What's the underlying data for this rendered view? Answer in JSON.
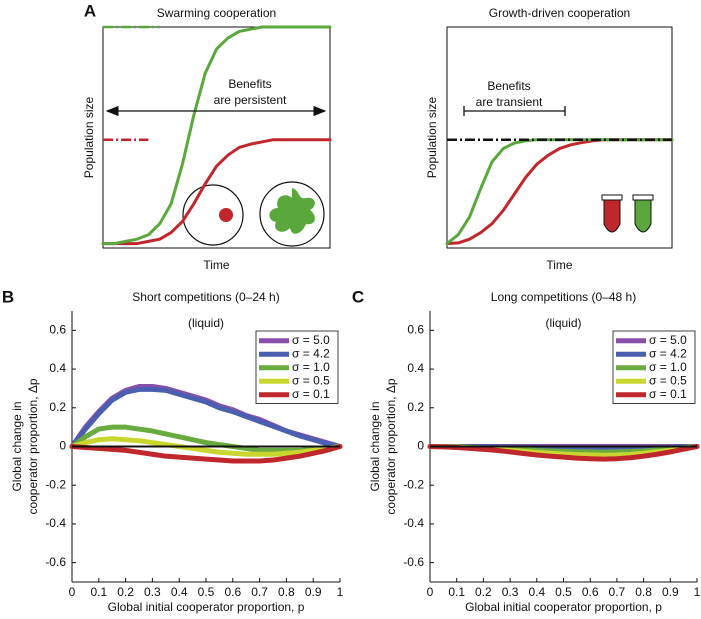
{
  "chart_data": [
    {
      "type": "line",
      "panel_label": "A",
      "title": "Swarming cooperation",
      "xlabel": "Time",
      "ylabel": "Population size",
      "annotations": [
        "Benefits",
        "are persistent"
      ],
      "xlim": [
        0,
        1
      ],
      "ylim": [
        0,
        1
      ],
      "x": [
        0,
        0.05,
        0.1,
        0.15,
        0.2,
        0.25,
        0.3,
        0.35,
        0.4,
        0.45,
        0.5,
        0.55,
        0.6,
        0.65,
        0.7,
        0.75,
        0.8,
        0.85,
        0.9,
        0.95,
        1
      ],
      "series": [
        {
          "color": "#5aa83c",
          "dash": true,
          "values": [
            1,
            1,
            1,
            1,
            1,
            1,
            null,
            null,
            null,
            null,
            null,
            null,
            null,
            null,
            null,
            null,
            null,
            null,
            null,
            null,
            null
          ]
        },
        {
          "color": "#c0272d",
          "dash": true,
          "values": [
            0.49,
            0.49,
            0.49,
            0.49,
            0.49,
            null,
            null,
            null,
            null,
            null,
            null,
            null,
            null,
            null,
            null,
            null,
            null,
            null,
            null,
            null,
            null
          ]
        },
        {
          "color": "#c0272d",
          "values": [
            0.02,
            0.02,
            0.02,
            0.02,
            0.03,
            0.04,
            0.07,
            0.12,
            0.2,
            0.29,
            0.37,
            0.42,
            0.455,
            0.47,
            0.48,
            0.49,
            0.49,
            0.49,
            0.49,
            0.49,
            0.49
          ]
        },
        {
          "color": "#5aa83c",
          "values": [
            0.02,
            0.02,
            0.03,
            0.04,
            0.06,
            0.11,
            0.2,
            0.38,
            0.6,
            0.79,
            0.9,
            0.95,
            0.98,
            0.99,
            1,
            1,
            1,
            1,
            1,
            1,
            1
          ]
        }
      ]
    },
    {
      "type": "line",
      "title": "Growth-driven cooperation",
      "xlabel": "Time",
      "ylabel": "Population size",
      "annotations": [
        "Benefits",
        "are transient"
      ],
      "xlim": [
        0,
        1
      ],
      "ylim": [
        0,
        1
      ],
      "x": [
        0,
        0.05,
        0.1,
        0.15,
        0.2,
        0.25,
        0.3,
        0.35,
        0.4,
        0.45,
        0.5,
        0.55,
        0.6,
        0.65,
        0.7,
        0.75,
        0.8,
        0.85,
        0.9,
        0.95,
        1
      ],
      "series": [
        {
          "color": "#c0272d",
          "values": [
            0.02,
            0.023,
            0.04,
            0.07,
            0.11,
            0.17,
            0.245,
            0.32,
            0.38,
            0.42,
            0.45,
            0.467,
            0.477,
            0.485,
            0.49,
            0.49,
            0.49,
            0.49,
            0.49,
            0.49,
            0.49
          ]
        },
        {
          "color": "#5aa83c",
          "values": [
            0.02,
            0.06,
            0.14,
            0.27,
            0.39,
            0.45,
            0.475,
            0.485,
            0.49,
            0.49,
            0.49,
            0.49,
            0.49,
            0.49,
            0.49,
            0.49,
            0.49,
            0.49,
            0.49,
            0.49,
            0.49
          ]
        },
        {
          "color": "#111111",
          "dash": true,
          "values": [
            0.49,
            0.49,
            0.49,
            0.49,
            0.49,
            0.49,
            0.49,
            0.49,
            0.49,
            0.49,
            0.49,
            0.49,
            0.49,
            0.49,
            0.49,
            0.49,
            0.49,
            0.49,
            0.49,
            0.49,
            0.49
          ]
        }
      ]
    },
    {
      "type": "line",
      "panel_label": "B",
      "title": "Short competitions (0–24 h)",
      "subtitle": "(liquid)",
      "xlabel": "Global initial cooperator proportion, p",
      "ylabel": [
        "Global change in",
        "cooperator proportion, Δp"
      ],
      "xlim": [
        0,
        1
      ],
      "ylim": [
        -0.7,
        0.7
      ],
      "xticks": [
        0,
        0.1,
        0.2,
        0.3,
        0.4,
        0.5,
        0.6,
        0.7,
        0.8,
        0.9,
        1
      ],
      "yticks": [
        -0.6,
        -0.4,
        -0.2,
        0,
        0.2,
        0.4,
        0.6
      ],
      "legend": "upper right",
      "x": [
        0,
        0.05,
        0.1,
        0.15,
        0.2,
        0.25,
        0.3,
        0.35,
        0.4,
        0.45,
        0.5,
        0.55,
        0.6,
        0.65,
        0.7,
        0.75,
        0.8,
        0.85,
        0.9,
        0.95,
        1
      ],
      "series": [
        {
          "name": "σ = 5.0",
          "color": "#8a4fa8",
          "values": [
            0,
            0.1,
            0.18,
            0.25,
            0.29,
            0.31,
            0.31,
            0.3,
            0.28,
            0.26,
            0.24,
            0.21,
            0.19,
            0.16,
            0.14,
            0.11,
            0.08,
            0.06,
            0.04,
            0.02,
            0
          ]
        },
        {
          "name": "σ = 4.2",
          "color": "#4a5fb0",
          "values": [
            0,
            0.09,
            0.17,
            0.24,
            0.28,
            0.295,
            0.295,
            0.29,
            0.27,
            0.25,
            0.23,
            0.2,
            0.18,
            0.155,
            0.13,
            0.105,
            0.08,
            0.055,
            0.035,
            0.015,
            0
          ]
        },
        {
          "name": "σ = 1.0",
          "color": "#6aab3f",
          "values": [
            0,
            0.05,
            0.09,
            0.1,
            0.1,
            0.09,
            0.08,
            0.065,
            0.05,
            0.035,
            0.02,
            0.01,
            0,
            -0.01,
            -0.02,
            -0.02,
            -0.02,
            -0.02,
            -0.015,
            -0.01,
            0
          ]
        },
        {
          "name": "σ = 0.5",
          "color": "#c8d62e",
          "values": [
            0,
            0.02,
            0.035,
            0.04,
            0.035,
            0.03,
            0.02,
            0.01,
            0,
            -0.01,
            -0.02,
            -0.03,
            -0.035,
            -0.04,
            -0.04,
            -0.04,
            -0.035,
            -0.03,
            -0.02,
            -0.01,
            0
          ]
        },
        {
          "name": "σ = 0.1",
          "color": "#c0272d",
          "values": [
            0,
            -0.005,
            -0.01,
            -0.015,
            -0.02,
            -0.03,
            -0.04,
            -0.05,
            -0.055,
            -0.06,
            -0.065,
            -0.07,
            -0.075,
            -0.075,
            -0.075,
            -0.07,
            -0.06,
            -0.05,
            -0.035,
            -0.02,
            0
          ]
        }
      ]
    },
    {
      "type": "line",
      "panel_label": "C",
      "title": "Long competitions (0–48 h)",
      "subtitle": "(liquid)",
      "xlabel": "Global initial cooperator proportion, p",
      "ylabel": [
        "Global change in",
        "cooperator proportion, Δp"
      ],
      "xlim": [
        0,
        1
      ],
      "ylim": [
        -0.7,
        0.7
      ],
      "xticks": [
        0,
        0.1,
        0.2,
        0.3,
        0.4,
        0.5,
        0.6,
        0.7,
        0.8,
        0.9,
        1
      ],
      "yticks": [
        -0.6,
        -0.4,
        -0.2,
        0,
        0.2,
        0.4,
        0.6
      ],
      "legend": "upper right",
      "x": [
        0,
        0.05,
        0.1,
        0.15,
        0.2,
        0.25,
        0.3,
        0.35,
        0.4,
        0.45,
        0.5,
        0.55,
        0.6,
        0.65,
        0.7,
        0.75,
        0.8,
        0.85,
        0.9,
        0.95,
        1
      ],
      "series": [
        {
          "name": "σ = 5.0",
          "color": "#8a4fa8",
          "values": [
            0,
            0,
            0,
            0,
            0,
            0,
            0,
            0,
            0,
            0,
            0,
            0,
            0,
            0,
            0,
            0,
            0,
            0,
            0,
            0,
            0
          ]
        },
        {
          "name": "σ = 4.2",
          "color": "#4a5fb0",
          "values": [
            0,
            0,
            -0.001,
            -0.002,
            -0.002,
            -0.003,
            -0.004,
            -0.005,
            -0.006,
            -0.007,
            -0.008,
            -0.009,
            -0.009,
            -0.01,
            -0.009,
            -0.009,
            -0.008,
            -0.006,
            -0.004,
            -0.002,
            0
          ]
        },
        {
          "name": "σ = 1.0",
          "color": "#6aab3f",
          "values": [
            0,
            -0.001,
            -0.002,
            -0.005,
            -0.007,
            -0.009,
            -0.013,
            -0.016,
            -0.02,
            -0.023,
            -0.025,
            -0.027,
            -0.028,
            -0.029,
            -0.028,
            -0.026,
            -0.023,
            -0.018,
            -0.013,
            -0.006,
            0
          ]
        },
        {
          "name": "σ = 0.5",
          "color": "#c8d62e",
          "values": [
            0,
            -0.001,
            -0.003,
            -0.007,
            -0.01,
            -0.014,
            -0.02,
            -0.025,
            -0.031,
            -0.035,
            -0.039,
            -0.042,
            -0.044,
            -0.045,
            -0.044,
            -0.041,
            -0.035,
            -0.028,
            -0.02,
            -0.01,
            0
          ]
        },
        {
          "name": "σ = 0.1",
          "color": "#c0272d",
          "values": [
            0,
            -0.002,
            -0.005,
            -0.01,
            -0.015,
            -0.02,
            -0.028,
            -0.036,
            -0.044,
            -0.05,
            -0.055,
            -0.06,
            -0.063,
            -0.065,
            -0.063,
            -0.058,
            -0.05,
            -0.04,
            -0.028,
            -0.014,
            0
          ]
        }
      ]
    }
  ]
}
